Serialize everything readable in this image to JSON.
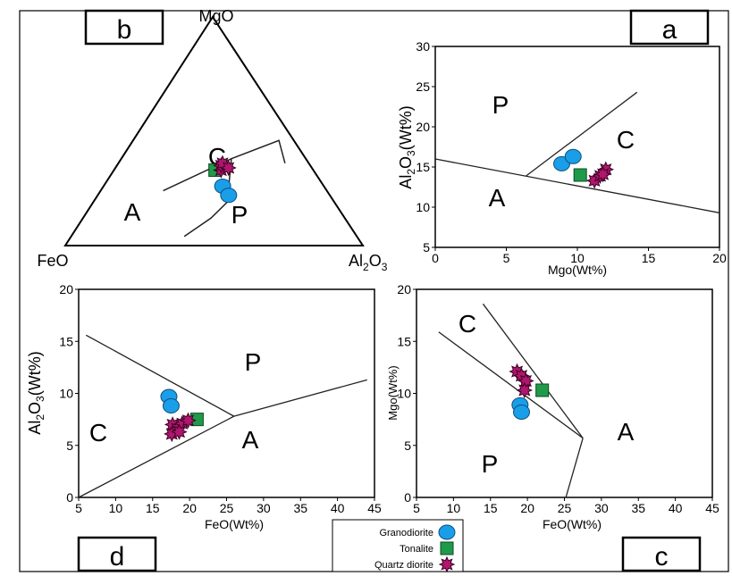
{
  "colors": {
    "granodiorite": "#1a9ee8",
    "tonalite": "#1f9a4a",
    "quartz_diorite": "#b0166f",
    "line": "#222222",
    "frame": "#000000"
  },
  "legend": {
    "items": [
      {
        "label": "Granodiorite",
        "marker": "circle"
      },
      {
        "label": "Tonalite",
        "marker": "square"
      },
      {
        "label": "Quartz diorite",
        "marker": "star"
      }
    ]
  },
  "chart_data": [
    {
      "panel": "b",
      "type": "ternary",
      "vertex_labels": {
        "top": "MgO",
        "left": "FeO",
        "right": "Al2O3"
      },
      "field_labels": [
        "A",
        "C",
        "P"
      ],
      "boundaries": [
        [
          [
            0.36,
            0.08,
            0.56
          ],
          [
            0.46,
            0.05,
            0.49
          ],
          [
            0.38,
            0.25,
            0.37
          ],
          [
            0.24,
            0.55,
            0.21
          ]
        ],
        [
          [
            0.38,
            0.25,
            0.37
          ],
          [
            0.19,
            0.36,
            0.45
          ],
          [
            0.12,
            0.45,
            0.43
          ],
          [
            0.04,
            0.58,
            0.38
          ]
        ]
      ],
      "series": [
        {
          "name": "Granodiorite",
          "points": [
            [
              0.26,
              0.34,
              0.4
            ],
            [
              0.22,
              0.34,
              0.44
            ]
          ]
        },
        {
          "name": "Tonalite",
          "points": [
            [
              0.33,
              0.33,
              0.34
            ]
          ]
        },
        {
          "name": "Quartz diorite",
          "points": [
            [
              0.33,
              0.31,
              0.36
            ],
            [
              0.35,
              0.3,
              0.35
            ],
            [
              0.36,
              0.29,
              0.35
            ],
            [
              0.34,
              0.28,
              0.38
            ]
          ]
        }
      ]
    },
    {
      "panel": "a",
      "type": "scatter",
      "xlabel": "Mgo(Wt%)",
      "ylabel": "Al2O3(Wt%)",
      "xlim": [
        0,
        20
      ],
      "ylim": [
        5,
        30
      ],
      "xticks": [
        0,
        5,
        10,
        15,
        20
      ],
      "yticks": [
        5,
        10,
        15,
        20,
        25,
        30
      ],
      "field_labels": [
        "P",
        "C",
        "A"
      ],
      "lines": [
        [
          [
            0,
            16
          ],
          [
            20,
            9.3
          ]
        ],
        [
          [
            6.4,
            13.9
          ],
          [
            14.2,
            24.3
          ]
        ]
      ],
      "series": [
        {
          "name": "Granodiorite",
          "x": [
            8.9,
            9.7
          ],
          "y": [
            15.4,
            16.3
          ]
        },
        {
          "name": "Tonalite",
          "x": [
            10.2
          ],
          "y": [
            14.0
          ]
        },
        {
          "name": "Quartz diorite",
          "x": [
            11.2,
            11.6,
            12.0,
            11.8
          ],
          "y": [
            13.3,
            13.9,
            14.7,
            14.1
          ]
        }
      ]
    },
    {
      "panel": "d",
      "type": "scatter",
      "xlabel": "FeO(Wt%)",
      "ylabel": "Al2O3(Wt%)",
      "xlim": [
        5,
        45
      ],
      "ylim": [
        0,
        20
      ],
      "xticks": [
        5,
        10,
        15,
        20,
        25,
        30,
        35,
        40,
        45
      ],
      "yticks": [
        0,
        5,
        10,
        15,
        20
      ],
      "field_labels": [
        "P",
        "C",
        "A"
      ],
      "lines": [
        [
          [
            6,
            15.6
          ],
          [
            26,
            7.8
          ]
        ],
        [
          [
            5,
            0
          ],
          [
            26,
            7.8
          ]
        ],
        [
          [
            26,
            7.8
          ],
          [
            44,
            11.3
          ]
        ]
      ],
      "series": [
        {
          "name": "Granodiorite",
          "x": [
            17.2,
            17.5
          ],
          "y": [
            9.7,
            8.8
          ]
        },
        {
          "name": "Tonalite",
          "x": [
            21.0
          ],
          "y": [
            7.5
          ]
        },
        {
          "name": "Quartz diorite",
          "x": [
            17.7,
            18.3,
            19.0,
            19.8,
            17.6,
            18.6
          ],
          "y": [
            7.0,
            6.6,
            7.1,
            7.4,
            6.1,
            6.3
          ]
        }
      ]
    },
    {
      "panel": "c",
      "type": "scatter",
      "xlabel": "FeO(Wt%)",
      "ylabel": "Mgo(Wt%)",
      "xlim": [
        5,
        45
      ],
      "ylim": [
        0,
        20
      ],
      "xticks": [
        5,
        10,
        15,
        20,
        25,
        30,
        35,
        40,
        45
      ],
      "yticks": [
        0,
        5,
        10,
        15,
        20
      ],
      "field_labels": [
        "C",
        "P",
        "A"
      ],
      "lines": [
        [
          [
            8,
            15.9
          ],
          [
            27.5,
            5.7
          ]
        ],
        [
          [
            14,
            18.6
          ],
          [
            27.5,
            5.7
          ]
        ],
        [
          [
            27.5,
            5.7
          ],
          [
            25.2,
            0
          ]
        ]
      ],
      "series": [
        {
          "name": "Granodiorite",
          "x": [
            19.0,
            19.2
          ],
          "y": [
            8.9,
            8.2
          ]
        },
        {
          "name": "Tonalite",
          "x": [
            22.0
          ],
          "y": [
            10.3
          ]
        },
        {
          "name": "Quartz diorite",
          "x": [
            18.6,
            19.2,
            19.8,
            19.6
          ],
          "y": [
            12.1,
            11.7,
            11.2,
            10.3
          ]
        }
      ]
    }
  ],
  "panels": {
    "b": {
      "label": "b",
      "field_labels": {
        "A": "A",
        "C": "C",
        "P": "P"
      },
      "vertex_top": "MgO",
      "vertex_left": "FeO",
      "vertex_right_main": "Al",
      "vertex_right_sub1": "2",
      "vertex_right_mid": "O",
      "vertex_right_sub2": "3"
    },
    "a": {
      "label": "a",
      "field_labels": {
        "P": "P",
        "C": "C",
        "A": "A"
      },
      "xlabel": "Mgo(Wt%)",
      "ylabel_main": "Al",
      "ylabel_sub1": "2",
      "ylabel_mid": "O",
      "ylabel_sub2": "3",
      "ylabel_tail": "(Wt%)"
    },
    "d": {
      "label": "d",
      "field_labels": {
        "P": "P",
        "C": "C",
        "A": "A"
      },
      "xlabel": "FeO(Wt%)",
      "ylabel_main": "Al",
      "ylabel_sub1": "2",
      "ylabel_mid": "O",
      "ylabel_sub2": "3",
      "ylabel_tail": "(Wt%)"
    },
    "c": {
      "label": "c",
      "field_labels": {
        "C": "C",
        "P": "P",
        "A": "A"
      },
      "xlabel": "FeO(Wt%)",
      "ylabel": "Mgo(Wt%)"
    }
  }
}
